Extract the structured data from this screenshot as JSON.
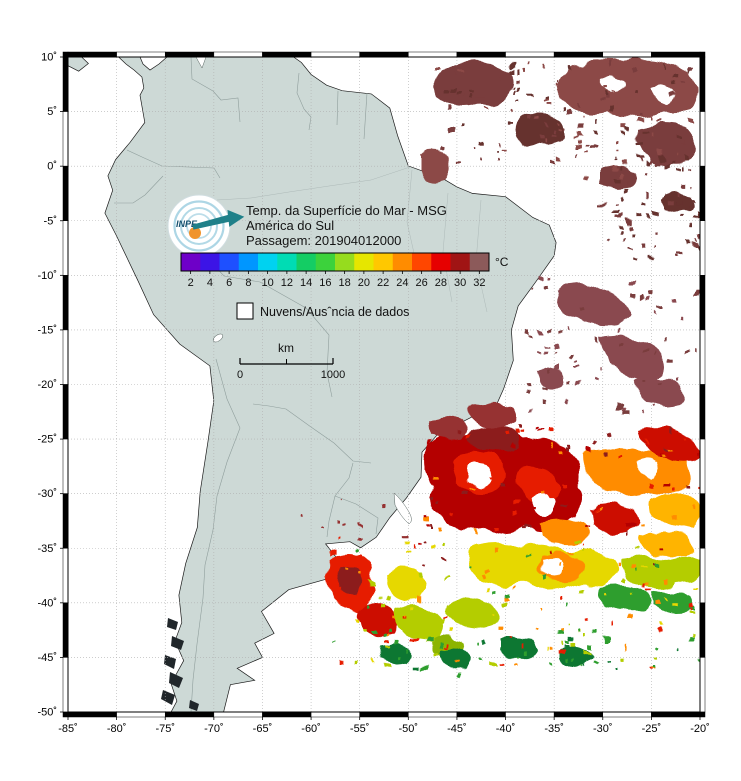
{
  "header": {
    "title_line1": "Temp. da Superfície do Mar - MSG",
    "title_line2": "América do Sul",
    "title_line3": "Passagem: 201904012000"
  },
  "logo": {
    "label": "INPE",
    "arrow_color": "#1f8089",
    "ring_color": "#9fcfe0",
    "dot_color": "#f0942c",
    "text_color": "#14506e"
  },
  "colorbar": {
    "unit_label": "°C",
    "tick_labels": [
      "2",
      "4",
      "6",
      "8",
      "10",
      "12",
      "14",
      "16",
      "18",
      "20",
      "22",
      "24",
      "26",
      "28",
      "30",
      "32"
    ],
    "segment_colors": [
      "#6e00c8",
      "#3c14e6",
      "#1e50ff",
      "#0096ff",
      "#00d2f0",
      "#00dcb4",
      "#14cd64",
      "#3cd23c",
      "#96dc1e",
      "#e6e600",
      "#ffc800",
      "#ff8c00",
      "#ff4600",
      "#e60000",
      "#a01414",
      "#8c5a5a"
    ]
  },
  "legend": {
    "no_data_label": "Nuvens/Ausˆncia de dados"
  },
  "scalebar": {
    "unit_label": "km",
    "start_label": "0",
    "end_label": "1000"
  },
  "axes": {
    "x_tick_labels": [
      "-85˚",
      "-80˚",
      "-75˚",
      "-70˚",
      "-65˚",
      "-60˚",
      "-55˚",
      "-50˚",
      "-45˚",
      "-40˚",
      "-35˚",
      "-30˚",
      "-25˚",
      "-20˚"
    ],
    "y_tick_labels": [
      "10˚",
      "5˚",
      "0˚",
      "-5˚",
      "-10˚",
      "-15˚",
      "-20˚",
      "-25˚",
      "-30˚",
      "-35˚",
      "-40˚",
      "-45˚",
      "-50˚"
    ]
  },
  "map_colors": {
    "land": "#cdd9d6",
    "ocean": "#ffffff",
    "grid": "#b0b0b0",
    "country_border": "#8f9e9c",
    "coast": "#1a1a1a",
    "dark_islands": "#20262a"
  },
  "sst_patch_colors": [
    "#7a3c3c",
    "#8c4a46",
    "#66302e",
    "#8a4a50",
    "#8c1e1e",
    "#b40000",
    "#e61e00",
    "#ff8c00",
    "#ffb400",
    "#e6d800",
    "#b4cd00",
    "#8cb400",
    "#2e9e2e",
    "#117733",
    "#cc1100",
    "#963232"
  ]
}
